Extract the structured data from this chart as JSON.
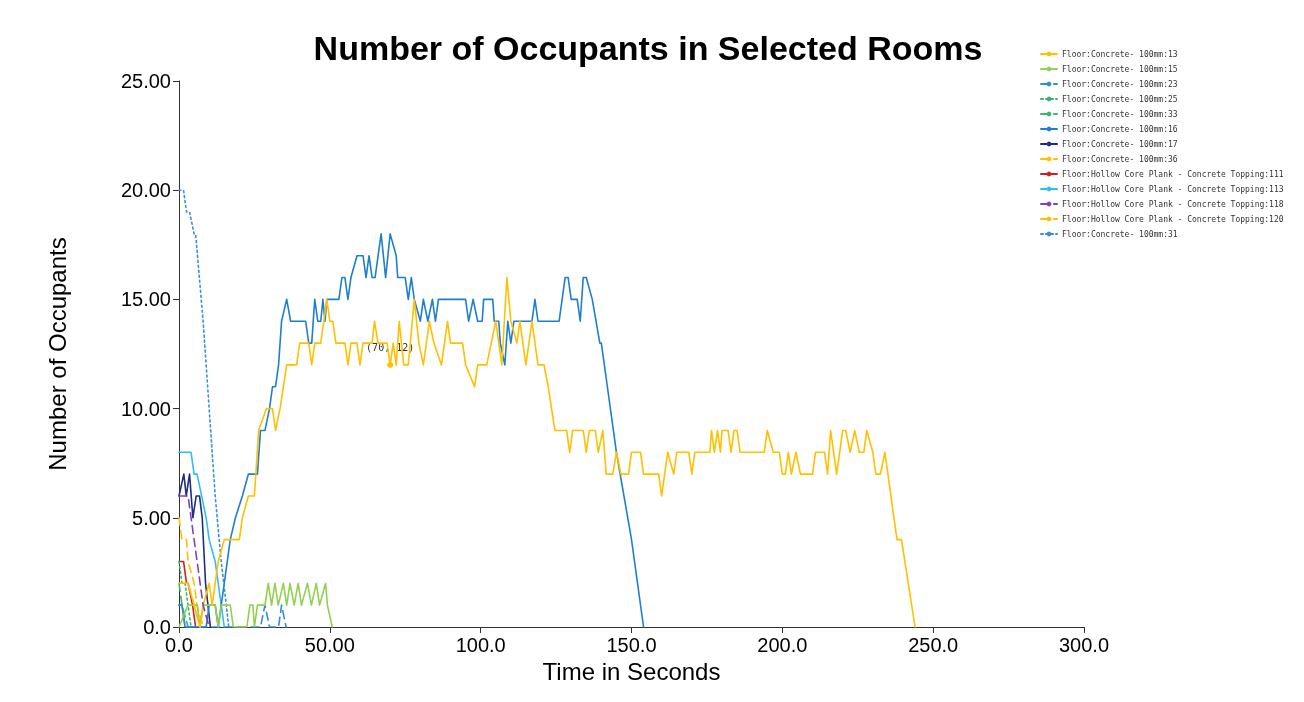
{
  "chart_data": {
    "type": "line",
    "title": "Number of Occupants in Selected Rooms",
    "xlabel": "Time in Seconds",
    "ylabel": "Number of Occupants",
    "xlim": [
      0,
      300
    ],
    "xticks": [
      {
        "value": 0,
        "label": "0.0"
      },
      {
        "value": 50,
        "label": "50.00"
      },
      {
        "value": 100,
        "label": "100.0"
      },
      {
        "value": 150,
        "label": "150.0"
      },
      {
        "value": 200,
        "label": "200.0"
      },
      {
        "value": 250,
        "label": "250.0"
      },
      {
        "value": 300,
        "label": "300.0"
      }
    ],
    "ylim": [
      0,
      25
    ],
    "yticks": [
      {
        "value": 0,
        "label": "0.0"
      },
      {
        "value": 5,
        "label": "5.00"
      },
      {
        "value": 10,
        "label": "10.00"
      },
      {
        "value": 15,
        "label": "15.00"
      },
      {
        "value": 20,
        "label": "20.00"
      },
      {
        "value": 25,
        "label": "25.00"
      }
    ],
    "grid": false,
    "legend": "top right",
    "marker": "none",
    "annotations": [
      {
        "text": "(70, 12)",
        "x": 70,
        "y": 12
      }
    ],
    "series": [
      {
        "name": "Floor:Concrete- 100mm:13",
        "color": "#ffc000",
        "line_style": "solid",
        "x": [
          0,
          3,
          5,
          7,
          8,
          10,
          11,
          13,
          15,
          16,
          20,
          21,
          23,
          25,
          26.4,
          29,
          31,
          32,
          33.5,
          34.6,
          35.7,
          39,
          40,
          43,
          44,
          45,
          47,
          49,
          50,
          51,
          52,
          55,
          56,
          57,
          59,
          60,
          61,
          64,
          64.8,
          66,
          69,
          70,
          71,
          72,
          73,
          74.5,
          76,
          78,
          79.5,
          81,
          83,
          84.5,
          87,
          89,
          90,
          94,
          95,
          98,
          99,
          102,
          103.5,
          105,
          107,
          108.7,
          110,
          112,
          113,
          115,
          117,
          119,
          121,
          122.4,
          124.6,
          128.5,
          129.5,
          130.5,
          134,
          135,
          136,
          138,
          139,
          140.5,
          141.6,
          143.8,
          145,
          146.5,
          149,
          150,
          153,
          154,
          159,
          160,
          162,
          164,
          165,
          169,
          170,
          171,
          176,
          176.5,
          177.5,
          178.5,
          179.5,
          180,
          182,
          183,
          184,
          185,
          186,
          194,
          195,
          197,
          199,
          200,
          201,
          202,
          203,
          204.5,
          206,
          210,
          211,
          214,
          215,
          216,
          218,
          220,
          221,
          222.5,
          224,
          225.5,
          227,
          228,
          230,
          231,
          232.5,
          234,
          236,
          238,
          239.5,
          244
        ],
        "values": [
          2,
          2,
          1,
          0,
          1,
          2,
          1,
          3,
          4,
          4,
          4,
          5,
          6,
          6,
          9,
          10,
          10,
          9,
          10,
          11,
          12,
          12,
          13,
          13,
          12,
          13,
          13,
          15,
          14,
          14,
          13,
          13,
          12,
          13,
          13,
          12,
          13,
          13,
          14,
          13,
          13,
          12,
          13,
          12,
          14,
          12,
          12,
          15,
          13,
          12,
          14,
          13,
          12,
          14,
          13,
          13,
          12,
          11,
          12,
          12,
          13,
          14,
          12,
          16,
          14,
          13,
          14,
          12,
          14,
          12,
          12,
          11,
          9,
          9,
          8,
          9,
          9,
          8,
          9,
          9,
          8,
          9,
          7,
          7,
          8,
          7,
          7,
          8,
          8,
          7,
          7,
          6,
          8,
          7,
          8,
          8,
          7,
          8,
          8,
          9,
          8,
          9,
          8,
          9,
          9,
          8,
          9,
          9,
          8,
          8,
          9,
          8,
          8,
          7,
          7,
          8,
          7,
          8,
          7,
          7,
          8,
          8,
          7,
          9,
          7,
          9,
          9,
          8,
          9,
          8,
          8,
          9,
          8,
          7,
          7,
          8,
          6,
          4,
          4,
          0
        ]
      },
      {
        "name": "Floor:Concrete- 100mm:15",
        "color": "#92d050",
        "line_style": "solid",
        "x": [
          0,
          3,
          6,
          7,
          8,
          12,
          13,
          14,
          17,
          18,
          22.5,
          23.5,
          24.5,
          25,
          26,
          28.5,
          29.6,
          30.7,
          31.8,
          32.9,
          34.6,
          35.7,
          36.8,
          38.2,
          39.5,
          40.6,
          42.6,
          43.9,
          45.5,
          46.6,
          48.6,
          49.2,
          50.8
        ],
        "values": [
          0,
          1,
          1,
          0,
          1,
          1,
          0,
          1,
          1,
          0,
          0,
          1,
          1,
          0,
          1,
          1,
          2,
          1,
          2,
          1,
          2,
          1,
          2,
          1,
          2,
          1,
          2,
          1,
          2,
          1,
          2,
          1,
          0
        ]
      },
      {
        "name": "Floor:Concrete- 100mm:23",
        "color": "#2e8ee0",
        "line_style": "dashed",
        "x": [
          0,
          1,
          2,
          27,
          28.5,
          30,
          33,
          34,
          35.5
        ],
        "values": [
          1,
          1,
          0,
          0,
          1,
          0,
          0,
          1,
          0
        ]
      },
      {
        "name": "Floor:Concrete- 100mm:25",
        "color": "#3cb371",
        "line_style": "dotted",
        "x": [
          0,
          1,
          2,
          4
        ],
        "values": [
          3,
          2,
          2,
          0
        ]
      },
      {
        "name": "Floor:Concrete- 100mm:33",
        "color": "#3cb371",
        "line_style": "dashed",
        "x": [
          0,
          1,
          3
        ],
        "values": [
          2,
          1,
          0
        ]
      },
      {
        "name": "Floor:Concrete- 100mm:16",
        "color": "#1f7fcf",
        "line_style": "solid",
        "x": [
          0,
          1,
          2,
          9,
          10,
          12,
          13,
          14,
          15,
          17,
          18.7,
          21,
          23,
          26,
          27,
          28.5,
          30,
          31,
          32,
          33,
          34,
          35.7,
          37,
          42,
          43,
          44,
          45,
          46,
          47,
          47.7,
          48.4,
          49,
          53,
          54,
          55,
          56,
          57,
          59,
          61,
          62,
          63,
          64,
          65,
          67,
          68.5,
          70,
          72,
          72.5,
          75,
          76,
          77,
          78,
          80,
          81,
          82.5,
          84,
          85,
          86,
          95,
          96,
          97.5,
          99,
          100.5,
          101,
          104,
          104.5,
          106,
          106.5,
          108,
          109,
          110,
          111,
          117,
          118,
          119,
          126,
          128,
          129,
          130,
          132,
          133,
          134,
          135,
          137,
          139.5,
          140,
          142,
          145,
          150,
          154
        ],
        "values": [
          1,
          1,
          0,
          0,
          1,
          1,
          0,
          1,
          2,
          4,
          5,
          6,
          7,
          7,
          9,
          9,
          10,
          11,
          11,
          12,
          14,
          15,
          14,
          14,
          13,
          13,
          15,
          14,
          14,
          15,
          14,
          15,
          15,
          16,
          16,
          15,
          16,
          17,
          17,
          16,
          17,
          16,
          16,
          18,
          16,
          18,
          17,
          16,
          16,
          15,
          16,
          15,
          14,
          15,
          14,
          15,
          14,
          15,
          15,
          14,
          15,
          14,
          14,
          15,
          15,
          14,
          14,
          13,
          12,
          14,
          13,
          14,
          14,
          15,
          14,
          14,
          16,
          16,
          15,
          15,
          14,
          16,
          16,
          15,
          13,
          13,
          11,
          8,
          4,
          0
        ]
      },
      {
        "name": "Floor:Concrete- 100mm:17",
        "color": "#1f2f7f",
        "line_style": "solid",
        "x": [
          0,
          1.6,
          2.4,
          3.5,
          4.6,
          5.7,
          6.8,
          7.7,
          8.8,
          10.4
        ],
        "values": [
          6,
          7,
          6,
          7,
          5,
          6,
          6,
          5,
          2,
          0
        ]
      },
      {
        "name": "Floor:Concrete- 100mm:36",
        "color": "#ffc000",
        "line_style": "dashed",
        "x": [
          0,
          1,
          2.5,
          3,
          5,
          6,
          8
        ],
        "values": [
          5,
          4,
          4,
          3,
          2,
          1,
          0
        ]
      },
      {
        "name": "Floor:Hollow Core Plank - Concrete Topping:111",
        "color": "#d02020",
        "line_style": "solid",
        "x": [
          0,
          1.5,
          2.5,
          3,
          4.5,
          5.5
        ],
        "values": [
          3,
          3,
          2,
          2,
          1,
          0
        ]
      },
      {
        "name": "Floor:Hollow Core Plank - Concrete Topping:113",
        "color": "#2ec0f0",
        "line_style": "solid",
        "x": [
          0,
          4,
          5,
          6,
          9,
          10,
          12,
          15
        ],
        "values": [
          8,
          8,
          7,
          7,
          5,
          4,
          3,
          0
        ]
      },
      {
        "name": "Floor:Hollow Core Plank - Concrete Topping:118",
        "color": "#8040c0",
        "line_style": "dashed",
        "x": [
          0,
          3,
          4,
          6,
          8,
          10
        ],
        "values": [
          6,
          6,
          5,
          3,
          1,
          0
        ]
      },
      {
        "name": "Floor:Hollow Core Plank - Concrete Topping:120",
        "color": "#ffc000",
        "line_style": "dashed",
        "x": [
          0,
          3,
          5,
          7
        ],
        "values": [
          2,
          2,
          1,
          0
        ]
      },
      {
        "name": "Floor:Concrete- 100mm:31",
        "color": "#3a8ee0",
        "line_style": "dotted",
        "x": [
          0,
          1.5,
          2.5,
          3.5,
          5,
          5.5,
          8,
          10,
          12,
          14,
          16.5
        ],
        "values": [
          20,
          20,
          19,
          19,
          18,
          18,
          14,
          10,
          6,
          3,
          0
        ]
      }
    ]
  }
}
